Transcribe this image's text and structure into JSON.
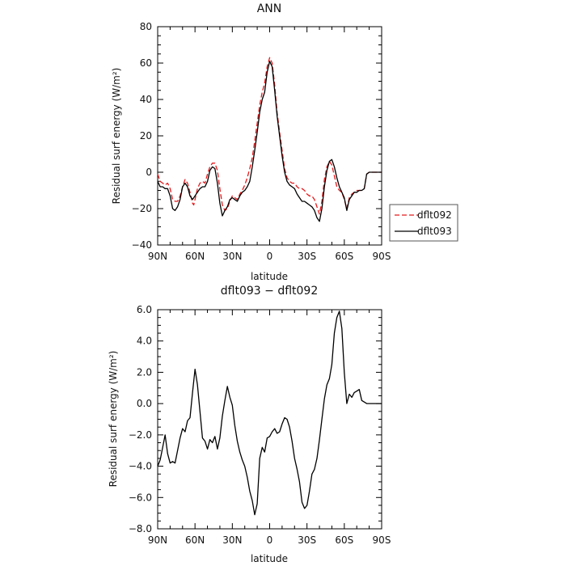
{
  "chart_data": [
    {
      "type": "line",
      "title": "ANN",
      "xlabel": "latitude",
      "ylabel": "Residual surf energy (W/m²)",
      "xlim": [
        90,
        -90
      ],
      "ylim": [
        -40,
        80
      ],
      "xticks": [
        90,
        60,
        30,
        0,
        -30,
        -60,
        -90
      ],
      "xtick_labels": [
        "90N",
        "60N",
        "30N",
        "0",
        "30S",
        "60S",
        "90S"
      ],
      "yticks": [
        -40,
        -20,
        0,
        20,
        40,
        60,
        80
      ],
      "ytick_labels": [
        "−40",
        "−20",
        "0",
        "20",
        "40",
        "60",
        "80"
      ],
      "legend_position": "right",
      "series": [
        {
          "name": "dflt092",
          "color": "#e41a1c",
          "dash": "dashed",
          "points": [
            [
              90,
              -1
            ],
            [
              88,
              -5
            ],
            [
              86,
              -6
            ],
            [
              84,
              -7
            ],
            [
              82,
              -6
            ],
            [
              80,
              -9
            ],
            [
              78,
              -15
            ],
            [
              76,
              -16
            ],
            [
              74,
              -16
            ],
            [
              72,
              -13
            ],
            [
              70,
              -8
            ],
            [
              68,
              -4
            ],
            [
              66,
              -6
            ],
            [
              64,
              -11
            ],
            [
              62,
              -17
            ],
            [
              61,
              -18
            ],
            [
              60,
              -15
            ],
            [
              58,
              -9
            ],
            [
              56,
              -6
            ],
            [
              54,
              -5
            ],
            [
              52,
              -6
            ],
            [
              50,
              -1
            ],
            [
              48,
              3
            ],
            [
              46,
              5
            ],
            [
              44,
              5
            ],
            [
              42,
              1
            ],
            [
              40,
              -9
            ],
            [
              38,
              -18
            ],
            [
              36,
              -21
            ],
            [
              34,
              -20
            ],
            [
              32,
              -16
            ],
            [
              30,
              -13
            ],
            [
              28,
              -14
            ],
            [
              26,
              -15
            ],
            [
              24,
              -12
            ],
            [
              22,
              -10
            ],
            [
              20,
              -7
            ],
            [
              18,
              -3
            ],
            [
              16,
              2
            ],
            [
              14,
              8
            ],
            [
              12,
              17
            ],
            [
              10,
              27
            ],
            [
              8,
              37
            ],
            [
              6,
              44
            ],
            [
              4,
              49
            ],
            [
              2,
              58
            ],
            [
              0,
              63
            ],
            [
              -2,
              60
            ],
            [
              -4,
              48
            ],
            [
              -6,
              33
            ],
            [
              -8,
              22
            ],
            [
              -10,
              12
            ],
            [
              -12,
              2
            ],
            [
              -14,
              -3
            ],
            [
              -16,
              -5
            ],
            [
              -18,
              -6
            ],
            [
              -20,
              -6
            ],
            [
              -22,
              -8
            ],
            [
              -24,
              -9
            ],
            [
              -26,
              -9
            ],
            [
              -28,
              -10
            ],
            [
              -30,
              -12
            ],
            [
              -32,
              -13
            ],
            [
              -34,
              -13
            ],
            [
              -36,
              -15
            ],
            [
              -38,
              -19
            ],
            [
              -40,
              -23
            ],
            [
              -42,
              -16
            ],
            [
              -44,
              -4
            ],
            [
              -46,
              3
            ],
            [
              -48,
              6
            ],
            [
              -50,
              4
            ],
            [
              -52,
              -2
            ],
            [
              -54,
              -8
            ],
            [
              -56,
              -10
            ],
            [
              -58,
              -11
            ],
            [
              -60,
              -15
            ],
            [
              -62,
              -20
            ],
            [
              -64,
              -14
            ],
            [
              -66,
              -12
            ],
            [
              -68,
              -11
            ],
            [
              -70,
              -10
            ],
            [
              -72,
              -10
            ],
            [
              -74,
              -10
            ],
            [
              -76,
              -9
            ],
            [
              -78,
              -1
            ],
            [
              -80,
              0
            ],
            [
              -90,
              0
            ]
          ]
        },
        {
          "name": "dflt093",
          "color": "#000000",
          "dash": "solid",
          "points": [
            [
              90,
              -5
            ],
            [
              88,
              -8
            ],
            [
              86,
              -8
            ],
            [
              84,
              -9
            ],
            [
              82,
              -9
            ],
            [
              80,
              -13
            ],
            [
              78,
              -20
            ],
            [
              76,
              -21
            ],
            [
              74,
              -19
            ],
            [
              72,
              -15
            ],
            [
              70,
              -8
            ],
            [
              68,
              -6
            ],
            [
              66,
              -8
            ],
            [
              64,
              -13
            ],
            [
              62,
              -15
            ],
            [
              60,
              -13
            ],
            [
              58,
              -11
            ],
            [
              56,
              -9
            ],
            [
              54,
              -8
            ],
            [
              52,
              -8
            ],
            [
              50,
              -5
            ],
            [
              48,
              1
            ],
            [
              46,
              3
            ],
            [
              44,
              2
            ],
            [
              42,
              -6
            ],
            [
              40,
              -17
            ],
            [
              38,
              -24
            ],
            [
              36,
              -21
            ],
            [
              34,
              -19
            ],
            [
              32,
              -15
            ],
            [
              30,
              -14
            ],
            [
              28,
              -15
            ],
            [
              26,
              -16
            ],
            [
              24,
              -13
            ],
            [
              22,
              -11
            ],
            [
              20,
              -10
            ],
            [
              18,
              -8
            ],
            [
              16,
              -5
            ],
            [
              14,
              3
            ],
            [
              12,
              12
            ],
            [
              10,
              22
            ],
            [
              8,
              33
            ],
            [
              6,
              40
            ],
            [
              4,
              44
            ],
            [
              2,
              55
            ],
            [
              0,
              61
            ],
            [
              -2,
              58
            ],
            [
              -4,
              45
            ],
            [
              -6,
              31
            ],
            [
              -8,
              20
            ],
            [
              -10,
              9
            ],
            [
              -12,
              0
            ],
            [
              -14,
              -5
            ],
            [
              -16,
              -7
            ],
            [
              -18,
              -8
            ],
            [
              -20,
              -9
            ],
            [
              -22,
              -12
            ],
            [
              -24,
              -14
            ],
            [
              -26,
              -16
            ],
            [
              -28,
              -16
            ],
            [
              -30,
              -17
            ],
            [
              -32,
              -18
            ],
            [
              -34,
              -19
            ],
            [
              -36,
              -21
            ],
            [
              -38,
              -25
            ],
            [
              -40,
              -27
            ],
            [
              -42,
              -20
            ],
            [
              -44,
              -8
            ],
            [
              -46,
              1
            ],
            [
              -48,
              6
            ],
            [
              -50,
              7
            ],
            [
              -52,
              3
            ],
            [
              -54,
              -3
            ],
            [
              -56,
              -8
            ],
            [
              -58,
              -11
            ],
            [
              -60,
              -14
            ],
            [
              -62,
              -21
            ],
            [
              -64,
              -15
            ],
            [
              -66,
              -13
            ],
            [
              -68,
              -11
            ],
            [
              -70,
              -11
            ],
            [
              -72,
              -10
            ],
            [
              -74,
              -10
            ],
            [
              -76,
              -9
            ],
            [
              -78,
              -1
            ],
            [
              -80,
              0
            ],
            [
              -90,
              0
            ]
          ]
        }
      ]
    },
    {
      "type": "line",
      "title": "dflt093 − dflt092",
      "xlabel": "latitude",
      "ylabel": "Residual surf energy (W/m²)",
      "xlim": [
        90,
        -90
      ],
      "ylim": [
        -8,
        6
      ],
      "xticks": [
        90,
        60,
        30,
        0,
        -30,
        -60,
        -90
      ],
      "xtick_labels": [
        "90N",
        "60N",
        "30N",
        "0",
        "30S",
        "60S",
        "90S"
      ],
      "yticks": [
        -8,
        -6,
        -4,
        -2,
        0,
        2,
        4,
        6
      ],
      "ytick_labels": [
        "−8.0",
        "−6.0",
        "−4.0",
        "−2.0",
        "0.0",
        "2.0",
        "4.0",
        "6.0"
      ],
      "series": [
        {
          "color": "#000000",
          "dash": "solid",
          "points": [
            [
              90,
              -4
            ],
            [
              88,
              -3.6
            ],
            [
              86,
              -2.8
            ],
            [
              84,
              -2
            ],
            [
              82,
              -3.2
            ],
            [
              80,
              -3.8
            ],
            [
              78,
              -3.7
            ],
            [
              76,
              -3.8
            ],
            [
              74,
              -3
            ],
            [
              72,
              -2.2
            ],
            [
              70,
              -1.6
            ],
            [
              68,
              -1.8
            ],
            [
              66,
              -1.1
            ],
            [
              64,
              -0.9
            ],
            [
              62,
              0.7
            ],
            [
              60,
              2.2
            ],
            [
              58,
              1.2
            ],
            [
              56,
              -0.5
            ],
            [
              54,
              -2.2
            ],
            [
              52,
              -2.4
            ],
            [
              50,
              -2.9
            ],
            [
              48,
              -2.3
            ],
            [
              46,
              -2.5
            ],
            [
              44,
              -2.1
            ],
            [
              42,
              -2.9
            ],
            [
              40,
              -2.2
            ],
            [
              38,
              -0.8
            ],
            [
              36,
              0.2
            ],
            [
              34,
              1.1
            ],
            [
              32,
              0.4
            ],
            [
              30,
              -0.1
            ],
            [
              28,
              -1.4
            ],
            [
              26,
              -2.4
            ],
            [
              24,
              -3.1
            ],
            [
              22,
              -3.6
            ],
            [
              20,
              -4.0
            ],
            [
              18,
              -4.7
            ],
            [
              16,
              -5.6
            ],
            [
              14,
              -6.2
            ],
            [
              12,
              -7.1
            ],
            [
              10,
              -6.4
            ],
            [
              8,
              -3.5
            ],
            [
              6,
              -2.8
            ],
            [
              4,
              -3.1
            ],
            [
              2,
              -2.2
            ],
            [
              0,
              -2.1
            ],
            [
              -2,
              -1.8
            ],
            [
              -4,
              -1.6
            ],
            [
              -6,
              -1.9
            ],
            [
              -8,
              -1.8
            ],
            [
              -10,
              -1.3
            ],
            [
              -12,
              -0.9
            ],
            [
              -14,
              -1.0
            ],
            [
              -16,
              -1.5
            ],
            [
              -18,
              -2.4
            ],
            [
              -20,
              -3.5
            ],
            [
              -22,
              -4.2
            ],
            [
              -24,
              -5.0
            ],
            [
              -26,
              -6.3
            ],
            [
              -28,
              -6.7
            ],
            [
              -30,
              -6.5
            ],
            [
              -32,
              -5.6
            ],
            [
              -34,
              -4.5
            ],
            [
              -36,
              -4.2
            ],
            [
              -38,
              -3.5
            ],
            [
              -40,
              -2.3
            ],
            [
              -42,
              -1.0
            ],
            [
              -44,
              0.3
            ],
            [
              -46,
              1.2
            ],
            [
              -48,
              1.6
            ],
            [
              -50,
              2.5
            ],
            [
              -52,
              4.5
            ],
            [
              -54,
              5.5
            ],
            [
              -56,
              5.9
            ],
            [
              -58,
              4.8
            ],
            [
              -60,
              2.0
            ],
            [
              -62,
              0.0
            ],
            [
              -64,
              0.6
            ],
            [
              -66,
              0.4
            ],
            [
              -68,
              0.7
            ],
            [
              -70,
              0.8
            ],
            [
              -72,
              0.9
            ],
            [
              -74,
              0.2
            ],
            [
              -76,
              0.1
            ],
            [
              -78,
              0.0
            ],
            [
              -80,
              0.0
            ],
            [
              -84,
              0.0
            ],
            [
              -90,
              0.0
            ]
          ]
        }
      ]
    }
  ]
}
